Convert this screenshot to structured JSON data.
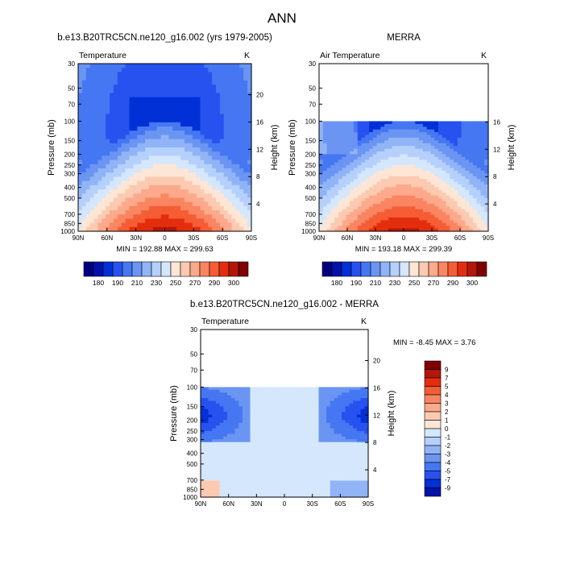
{
  "page": {
    "title": "ANN"
  },
  "colors": {
    "palette_abs": [
      "#00007f",
      "#0012a8",
      "#0030d6",
      "#2752f0",
      "#4677f2",
      "#6b95f2",
      "#91b4f7",
      "#b5d0fb",
      "#d4e7fc",
      "#fde6d6",
      "#fccab0",
      "#fca98c",
      "#fa8561",
      "#f55d35",
      "#e32e0e",
      "#b3170a",
      "#800000"
    ],
    "palette_diff": [
      "#00007f",
      "#0012a8",
      "#0030d6",
      "#2752f0",
      "#4677f2",
      "#6b95f2",
      "#91b4f7",
      "#b5d0fb",
      "#d4e7fc",
      "#fde6d6",
      "#fccab0",
      "#fca98c",
      "#fa8561",
      "#f55d35",
      "#e32e0e",
      "#b3170a",
      "#800000"
    ]
  },
  "chart_data": [
    {
      "type": "heatmap",
      "title": "b.e13.B20TRC5CN.ne120_g16.002 (yrs 1979-2005)",
      "variable": "Temperature",
      "units": "K",
      "ylabel": "Pressure (mb)",
      "ylabel_right": "Height (km)",
      "x_ticks": [
        "90N",
        "60N",
        "30N",
        "0",
        "30S",
        "60S",
        "90S"
      ],
      "y_ticks": [
        "30",
        "50",
        "70",
        "100",
        "150",
        "200",
        "250",
        "300",
        "400",
        "500",
        "700",
        "850",
        "1000"
      ],
      "y_ticks_right": [
        "20",
        "16",
        "12",
        "8",
        "4"
      ],
      "stats": "MIN = 192.88   MAX = 299.63",
      "colorbar_labels": [
        "180",
        "190",
        "210",
        "230",
        "250",
        "270",
        "290",
        "300"
      ],
      "p_range": [
        30,
        1000
      ],
      "data_top_mb": 30
    },
    {
      "type": "heatmap",
      "title": "MERRA",
      "variable": "Air Temperature",
      "units": "K",
      "ylabel": "Pressure (mb)",
      "ylabel_right": "Height (km)",
      "x_ticks": [
        "90N",
        "60N",
        "30N",
        "0",
        "30S",
        "60S",
        "90S"
      ],
      "y_ticks": [
        "30",
        "50",
        "70",
        "100",
        "150",
        "200",
        "250",
        "300",
        "400",
        "500",
        "700",
        "850",
        "1000"
      ],
      "y_ticks_right": [
        "16",
        "12",
        "8",
        "4"
      ],
      "stats": "MIN = 193.18   MAX = 299.39",
      "colorbar_labels": [
        "180",
        "190",
        "210",
        "230",
        "250",
        "270",
        "290",
        "300"
      ],
      "p_range": [
        30,
        1000
      ],
      "data_top_mb": 100
    },
    {
      "type": "heatmap",
      "title": "b.e13.B20TRC5CN.ne120_g16.002 - MERRA",
      "variable": "Temperature",
      "units": "K",
      "ylabel": "Pressure (mb)",
      "ylabel_right": "Height (km)",
      "x_ticks": [
        "90N",
        "60N",
        "30N",
        "0",
        "30S",
        "60S",
        "90S"
      ],
      "y_ticks": [
        "30",
        "50",
        "70",
        "100",
        "150",
        "200",
        "250",
        "300",
        "400",
        "500",
        "700",
        "850",
        "1000"
      ],
      "y_ticks_right": [
        "20",
        "16",
        "12",
        "8",
        "4"
      ],
      "stats": "MIN =  -8.45   MAX =   3.76",
      "colorbar_labels": [
        "9",
        "7",
        "5",
        "4",
        "3",
        "2",
        "1",
        "0",
        "-1",
        "-2",
        "-3",
        "-4",
        "-5",
        "-7",
        "-9"
      ],
      "p_range": [
        30,
        1000
      ],
      "data_top_mb": 100
    }
  ]
}
